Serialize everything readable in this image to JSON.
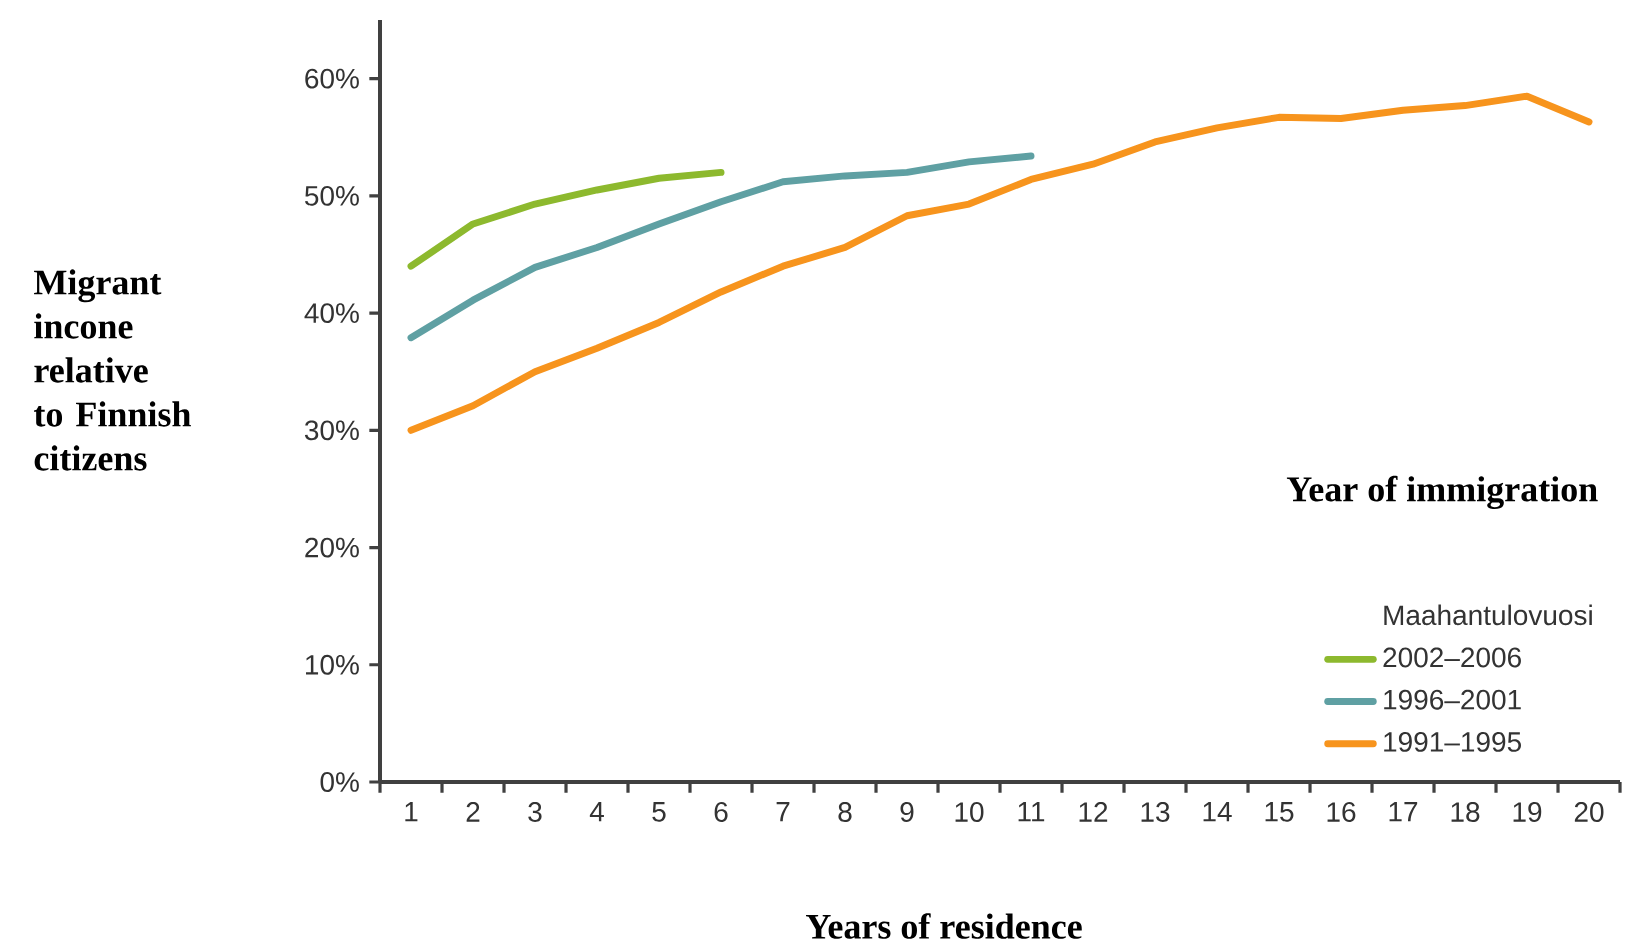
{
  "chart_data": {
    "type": "line",
    "xlabel": "Years of residence",
    "ylabel": "Migrant incone relative to Finnish citizens",
    "legend_title": "Maahantulovuosi",
    "annotations": [
      "Year of immigration"
    ],
    "categories": [
      "1",
      "2",
      "3",
      "4",
      "5",
      "6",
      "7",
      "8",
      "9",
      "10",
      "11",
      "12",
      "13",
      "14",
      "15",
      "16",
      "17",
      "18",
      "19",
      "20"
    ],
    "series": [
      {
        "name": "2002–2006",
        "color": "#8db92e",
        "values": [
          44.0,
          47.6,
          49.3,
          50.5,
          51.5,
          52.0,
          null,
          null,
          null,
          null,
          null,
          null,
          null,
          null,
          null,
          null,
          null,
          null,
          null,
          null
        ]
      },
      {
        "name": "1996–2001",
        "color": "#5fa0a3",
        "values": [
          37.9,
          41.1,
          43.9,
          45.6,
          47.6,
          49.5,
          51.2,
          51.7,
          52.0,
          52.9,
          53.4,
          null,
          null,
          null,
          null,
          null,
          null,
          null,
          null,
          null
        ]
      },
      {
        "name": "1991–1995",
        "color": "#f7941d",
        "values": [
          30.0,
          32.1,
          35.0,
          37.0,
          39.2,
          41.8,
          44.0,
          45.6,
          48.3,
          49.3,
          51.4,
          52.7,
          54.6,
          55.8,
          56.7,
          56.6,
          57.3,
          57.7,
          58.5,
          56.3
        ]
      }
    ],
    "ylim": [
      0,
      65
    ],
    "yticks": [
      {
        "value": 0,
        "label": "0%"
      },
      {
        "value": 10,
        "label": "10%"
      },
      {
        "value": 20,
        "label": "20%"
      },
      {
        "value": 30,
        "label": "30%"
      },
      {
        "value": 40,
        "label": "40%"
      },
      {
        "value": 50,
        "label": "50%"
      },
      {
        "value": 60,
        "label": "60%"
      }
    ],
    "legend": "bottom right",
    "marker": "none",
    "line_style": "solid"
  }
}
